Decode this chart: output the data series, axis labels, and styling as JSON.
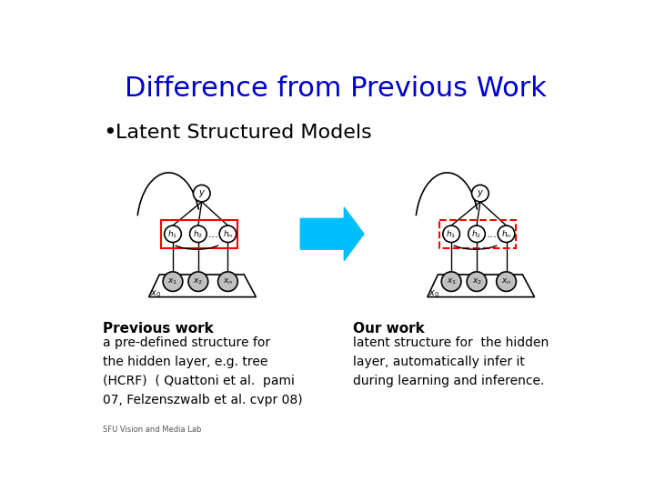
{
  "title": "Difference from Previous Work",
  "title_color": "#0000cc",
  "title_fontsize": 22,
  "bullet_text": "Latent Structured Models",
  "bullet_fontsize": 16,
  "prev_work_title": "Previous work",
  "prev_work_body": "a pre-defined structure for\nthe hidden layer, e.g. tree\n(HCRF)  ( Quattoni et al.  pami\n07, Felzenszwalb et al. cvpr 08)",
  "our_work_title": "Our work",
  "our_work_body": "latent structure for  the hidden\nlayer, automatically infer it\nduring learning and inference.",
  "bg_color": "#ffffff",
  "text_color": "#000000",
  "arrow_color": "#00bfff"
}
